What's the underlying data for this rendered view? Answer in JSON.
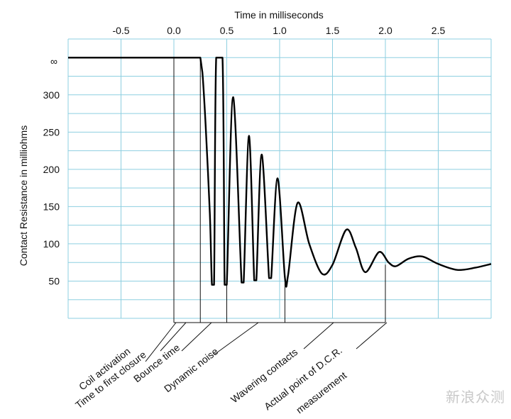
{
  "chart_data": {
    "type": "line",
    "title": "",
    "xlabel": "Time in milliseconds",
    "ylabel": "Contact Resistance in milliohms",
    "xlim": [
      -1.0,
      3.0
    ],
    "ylim": [
      0,
      375
    ],
    "x_ticks": [
      "-0.5",
      "0.0",
      "0.5",
      "1.0",
      "1.5",
      "2.0",
      "2.5"
    ],
    "y_ticks": [
      "∞",
      "300",
      "250",
      "200",
      "150",
      "100",
      "50"
    ],
    "infinity_label": "∞",
    "grid": true,
    "series": [
      {
        "points": [
          [
            -1.0,
            350
          ],
          [
            0.25,
            350
          ],
          [
            0.27,
            330
          ],
          [
            0.3,
            260
          ],
          [
            0.34,
            140
          ],
          [
            0.36,
            45
          ],
          [
            0.38,
            45
          ],
          [
            0.4,
            350
          ],
          [
            0.46,
            350
          ],
          [
            0.48,
            45
          ],
          [
            0.5,
            45
          ],
          [
            0.56,
            297
          ],
          [
            0.64,
            48
          ],
          [
            0.66,
            48
          ],
          [
            0.71,
            245
          ],
          [
            0.76,
            51
          ],
          [
            0.78,
            51
          ],
          [
            0.83,
            220
          ],
          [
            0.9,
            54
          ],
          [
            0.92,
            54
          ],
          [
            0.98,
            188
          ],
          [
            1.05,
            55
          ],
          [
            1.08,
            58
          ],
          [
            1.17,
            155
          ],
          [
            1.28,
            100
          ],
          [
            1.4,
            60
          ],
          [
            1.5,
            72
          ],
          [
            1.63,
            119
          ],
          [
            1.72,
            95
          ],
          [
            1.81,
            62
          ],
          [
            1.94,
            89
          ],
          [
            2.03,
            75
          ],
          [
            2.1,
            70
          ],
          [
            2.22,
            80
          ],
          [
            2.35,
            83
          ],
          [
            2.5,
            73
          ],
          [
            2.68,
            65
          ],
          [
            2.85,
            68
          ],
          [
            3.0,
            73
          ]
        ]
      }
    ],
    "annotations": [
      {
        "label": "Coil activation",
        "x": 0.0
      },
      {
        "label": "Time to first closure",
        "x": 0.25
      },
      {
        "label": "Bounce time",
        "x": 0.5
      },
      {
        "label": "Dynamic noise",
        "x": 1.05
      },
      {
        "label": "Wavering contacts",
        "x": 1.05
      },
      {
        "label": "Actual point of D.C.R. measurement",
        "x": 2.0
      }
    ]
  },
  "watermark": "新浪众测"
}
